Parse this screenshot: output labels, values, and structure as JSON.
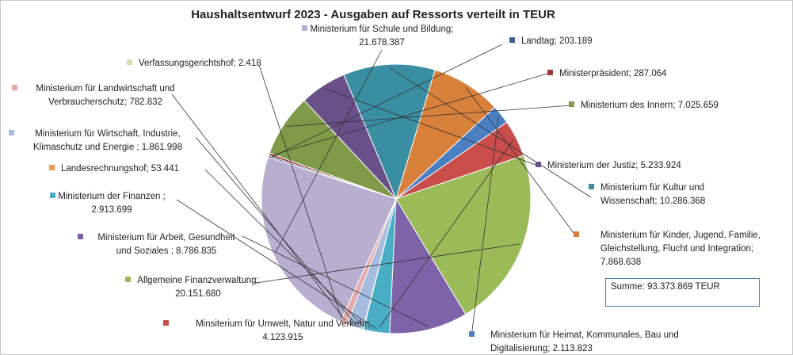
{
  "chart_data": {
    "type": "pie",
    "title": "Haushaltsentwurf 2023 - Ausgaben auf Ressorts verteilt in TEUR",
    "summary": "Summe: 93.373.869 TEUR",
    "slices": [
      {
        "category": "Landtag",
        "value": 203189,
        "label_lines": [
          "Landtag; 203.189"
        ],
        "color": "#3f5f95"
      },
      {
        "category": "Ministerpräsident",
        "value": 287064,
        "label_lines": [
          "Ministerpräsident; 287.064"
        ],
        "color": "#9b3a38"
      },
      {
        "category": "Ministerium des Innern",
        "value": 7025659,
        "label_lines": [
          "Ministerium des Innern; 7.025.659"
        ],
        "color": "#7f9a48"
      },
      {
        "category": "Ministerium der Justiz",
        "value": 5233924,
        "label_lines": [
          "Ministerium der Justiz; 5.233.924"
        ],
        "color": "#6a5088"
      },
      {
        "category": "Ministerium für Kultur und Wissenschaft",
        "value": 10286368,
        "label_lines": [
          "Ministerium für Kultur und",
          "Wissenschaft; 10.286.368"
        ],
        "color": "#3a8ea2"
      },
      {
        "category": "Ministerium für Kinder, Jugend, Familie, Gleichstellung, Flucht und Integration",
        "value": 7868638,
        "label_lines": [
          "Ministerium für Kinder, Jugend, Familie,",
          "Gleichstellung, Flucht und Integration;",
          "7.868.638"
        ],
        "color": "#d9803b"
      },
      {
        "category": "Ministerium für Heimat, Kommunales, Bau und Digitalisierung",
        "value": 2113823,
        "label_lines": [
          "Ministerium für Heimat, Kommunales, Bau und",
          "Digitalisierung; 2.113.823"
        ],
        "color": "#4a7fc2"
      },
      {
        "category": "Minsiterium für Umwelt, Natur und Verkehr",
        "value": 4123915,
        "label_lines": [
          "Minsiterium für Umwelt, Natur und Verkehr;",
          "4.123.915"
        ],
        "color": "#c84d4b"
      },
      {
        "category": "Allgemeine Finanzverwaltung",
        "value": 20151680,
        "label_lines": [
          "Allgemeine Finanzverwaltung;",
          "20.151.680"
        ],
        "color": "#9bbb58"
      },
      {
        "category": "Ministerium für Arbeit, Gesundheit und Soziales",
        "value": 8786835,
        "label_lines": [
          "Ministerium für Arbeit, Gesundheit",
          "und Soziales ; 8.786.835"
        ],
        "color": "#7f63a8"
      },
      {
        "category": "Ministerium der Finanzen",
        "value": 2913699,
        "label_lines": [
          "Ministerium der Finanzen ;",
          "2.913.699"
        ],
        "color": "#49adc6"
      },
      {
        "category": "Landesrechnungshof",
        "value": 53441,
        "label_lines": [
          "Landesrechnungshof; 53.441"
        ],
        "color": "#f2994a"
      },
      {
        "category": "Ministerium für Wirtschaft, Industrie, Klimaschutz und Energie",
        "value": 1861998,
        "label_lines": [
          "Ministerium für Wirtschaft, Industrie,",
          "Klimaschutz und Energie ; 1.861.998"
        ],
        "color": "#a6bcdf"
      },
      {
        "category": "Ministerium für Landwirtschaft und Verbraucherschutz",
        "value": 782832,
        "label_lines": [
          "Ministerium für Landwirtschaft und",
          "Verbraucherschutz; 782.832"
        ],
        "color": "#e4a9a8"
      },
      {
        "category": "Verfassungsgerichtshof",
        "value": 2418,
        "label_lines": [
          "Verfassungsgerichtshof; 2.418"
        ],
        "color": "#cfdfa8"
      },
      {
        "category": "Ministerium für Schule und Bildung",
        "value": 21678387,
        "label_lines": [
          "Ministerium für Schule und Bildung;",
          "21.678.387"
        ],
        "color": "#b8aed0"
      }
    ]
  }
}
